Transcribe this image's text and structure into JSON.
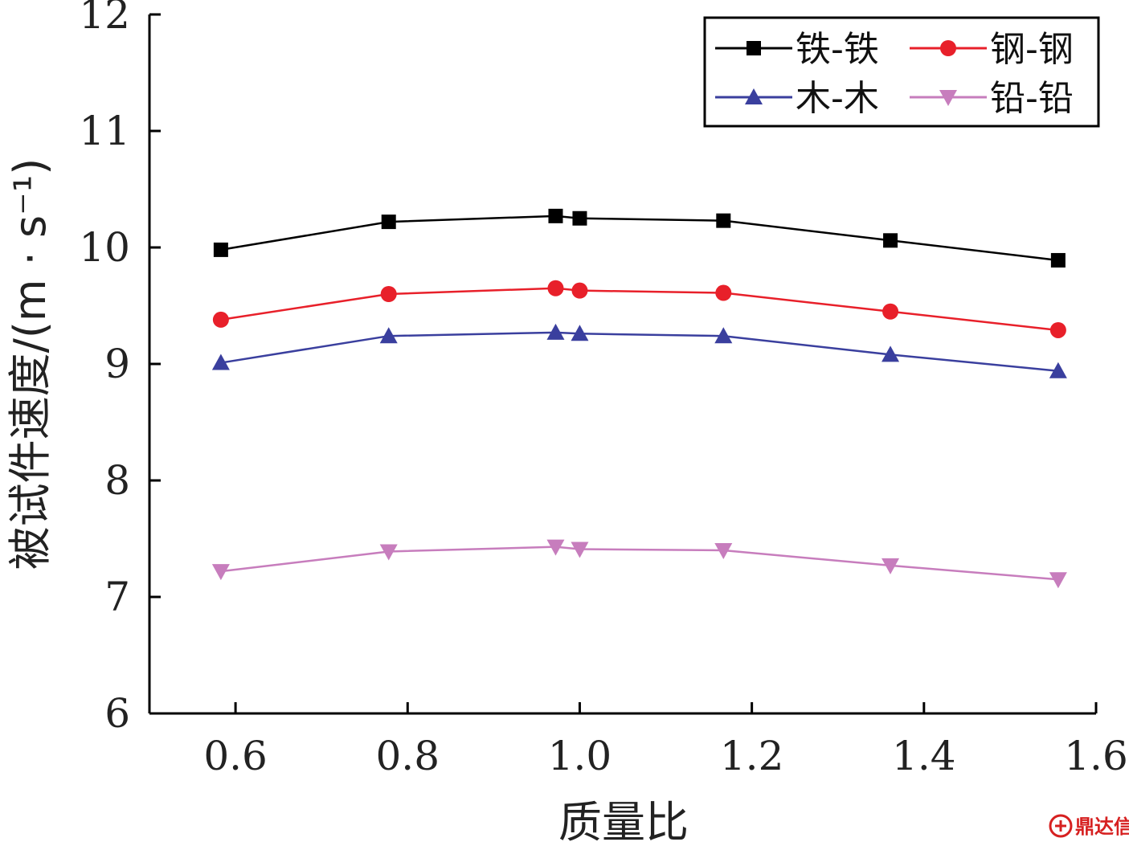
{
  "chart_data": {
    "type": "line",
    "title": "",
    "xlabel": "质量比",
    "ylabel": "被试件速度/(m · s⁻¹)",
    "xlim": [
      0.5,
      1.6
    ],
    "ylim": [
      6,
      12
    ],
    "x_ticks": [
      "0.6",
      "0.8",
      "1.0",
      "1.2",
      "1.4",
      "1.6"
    ],
    "y_ticks": [
      "6",
      "7",
      "8",
      "9",
      "10",
      "11",
      "12"
    ],
    "x": [
      0.583,
      0.778,
      0.972,
      1.0,
      1.167,
      1.361,
      1.556
    ],
    "legend_position": "top-right",
    "grid": false,
    "series": [
      {
        "name": "铁-铁",
        "color": "#000000",
        "marker": "square",
        "values": [
          9.98,
          10.22,
          10.27,
          10.25,
          10.23,
          10.06,
          9.89
        ]
      },
      {
        "name": "钢-钢",
        "color": "#e8202a",
        "marker": "circle",
        "values": [
          9.38,
          9.6,
          9.65,
          9.63,
          9.61,
          9.45,
          9.29
        ]
      },
      {
        "name": "木-木",
        "color": "#3a3f9e",
        "marker": "triangle-up",
        "values": [
          9.01,
          9.24,
          9.27,
          9.26,
          9.24,
          9.08,
          8.94
        ]
      },
      {
        "name": "铅-铅",
        "color": "#c77dbd",
        "marker": "triangle-down",
        "values": [
          7.22,
          7.39,
          7.43,
          7.41,
          7.4,
          7.27,
          7.15
        ]
      }
    ]
  },
  "watermark": {
    "text": "鼎达信",
    "icon": "logo-icon",
    "color": "#d62020"
  }
}
